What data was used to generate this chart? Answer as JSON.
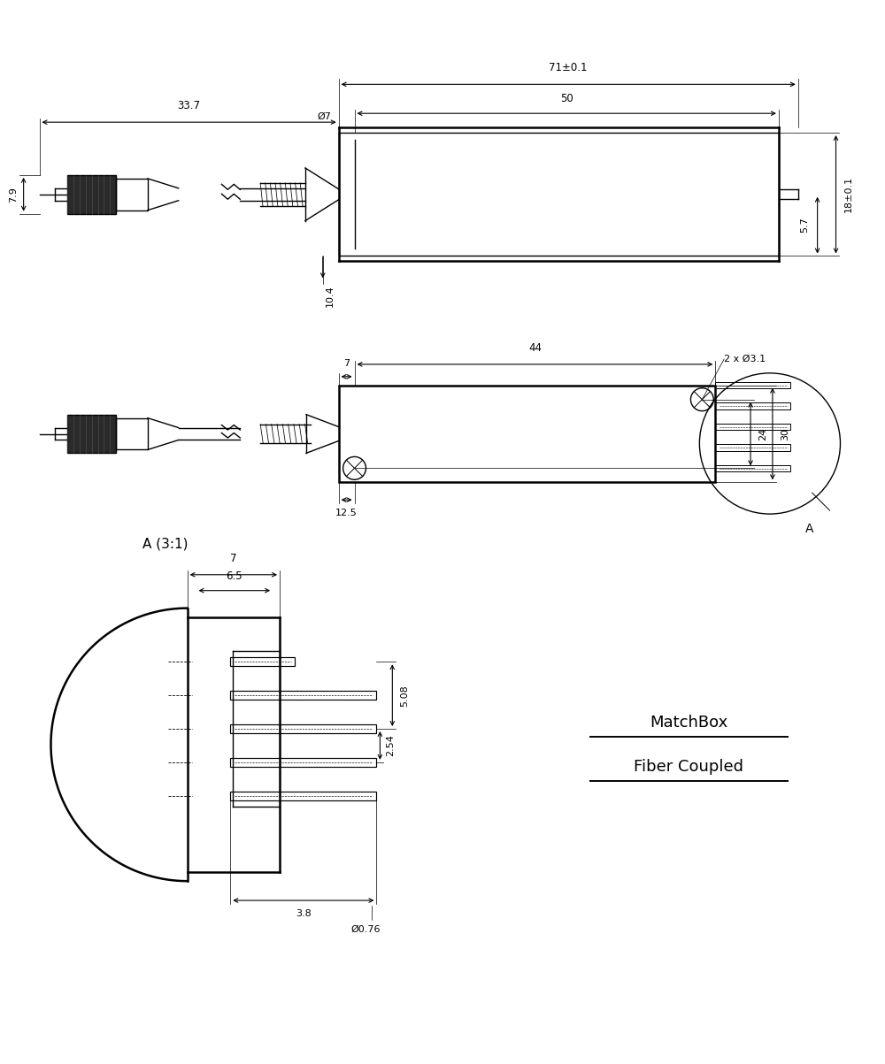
{
  "bg_color": "#ffffff",
  "line_color": "#000000",
  "fig_width": 10.0,
  "fig_height": 12.03,
  "dim_labels": {
    "top_total": "71±0.1",
    "top_body": "50",
    "cable_len": "33.7",
    "diam7": "Ø7",
    "height_top": "10.4",
    "height_18": "18±0.1",
    "height_57": "5.7",
    "height_79": "7.9",
    "mid_44": "44",
    "mid_7": "7",
    "mid_12": "12.5",
    "mid_24": "24",
    "mid_30": "30",
    "mid_2xd31": "2 x Ø3.1",
    "detail_7": "7",
    "detail_65": "6.5",
    "detail_508": "5.08",
    "detail_254": "2.54",
    "detail_38": "3.8",
    "detail_076": "Ø0.76",
    "section_label": "A (3:1)",
    "matchbox_line1": "MatchBox",
    "matchbox_line2": "Fiber Coupled",
    "section_a": "A"
  }
}
